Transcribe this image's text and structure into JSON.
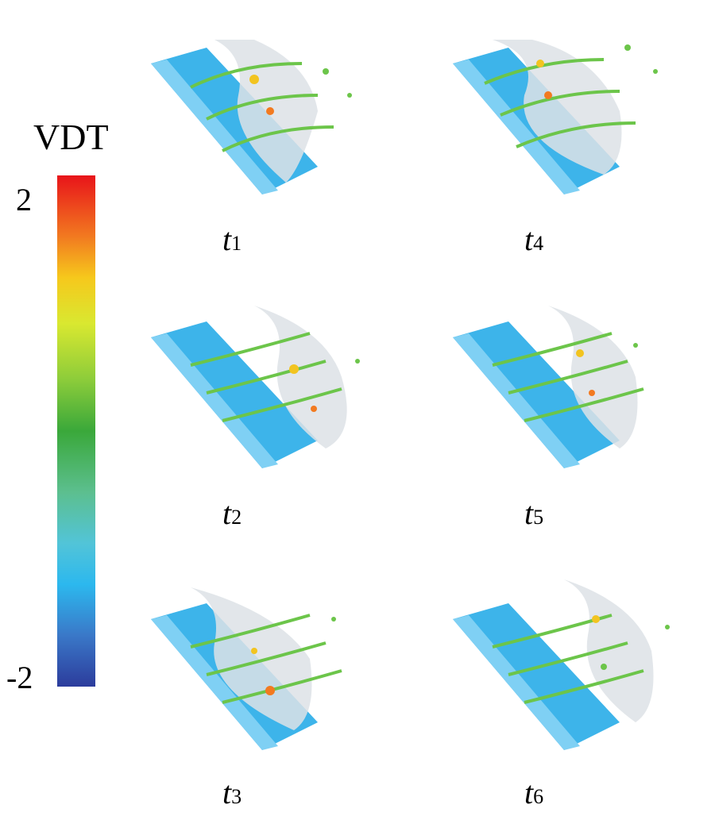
{
  "colorbar": {
    "title": "VDT",
    "max_label": "2",
    "min_label": "-2",
    "colors": [
      "#e8141a",
      "#f27a20",
      "#f6c81c",
      "#d9e830",
      "#8ccc3a",
      "#3aa83a",
      "#5cbf8f",
      "#52c4d8",
      "#2cb8ee",
      "#3a78c8",
      "#2c3c9c"
    ]
  },
  "panels": [
    {
      "id": "t1",
      "label_main": "t",
      "label_sub": "1"
    },
    {
      "id": "t4",
      "label_main": "t",
      "label_sub": "4"
    },
    {
      "id": "t2",
      "label_main": "t",
      "label_sub": "2"
    },
    {
      "id": "t5",
      "label_main": "t",
      "label_sub": "5"
    },
    {
      "id": "t3",
      "label_main": "t",
      "label_sub": "3"
    },
    {
      "id": "t6",
      "label_main": "t",
      "label_sub": "6"
    }
  ]
}
